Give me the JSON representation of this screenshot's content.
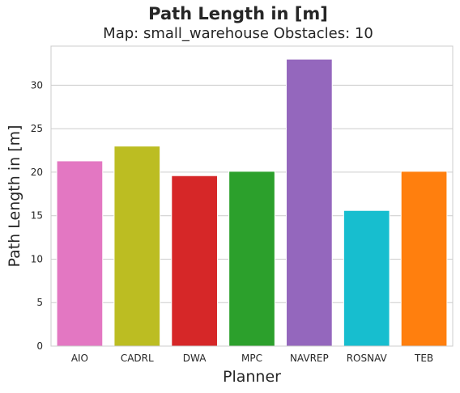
{
  "figure": {
    "title": "Path Length in [m]",
    "subtitle": "Map: small_warehouse Obstacles: 10"
  },
  "chart_data": {
    "type": "bar",
    "title": "Path Length in [m]",
    "subtitle": "Map: small_warehouse Obstacles: 10",
    "xlabel": "Planner",
    "ylabel": "Path Length in [m]",
    "categories": [
      "AIO",
      "CADRL",
      "DWA",
      "MPC",
      "NAVREP",
      "ROSNAV",
      "TEB"
    ],
    "values": [
      21.3,
      23.0,
      19.6,
      20.1,
      33.0,
      15.6,
      20.1
    ],
    "colors": [
      "#e377c2",
      "#bcbd22",
      "#d62728",
      "#2ca02c",
      "#9467bd",
      "#17becf",
      "#ff7f0e"
    ],
    "ylim": [
      0,
      34.5
    ],
    "yticks": [
      0,
      5,
      10,
      15,
      20,
      25,
      30
    ],
    "grid": true,
    "grid_axis": "y",
    "background": "#ffffff",
    "grid_color": "#cccccc"
  }
}
